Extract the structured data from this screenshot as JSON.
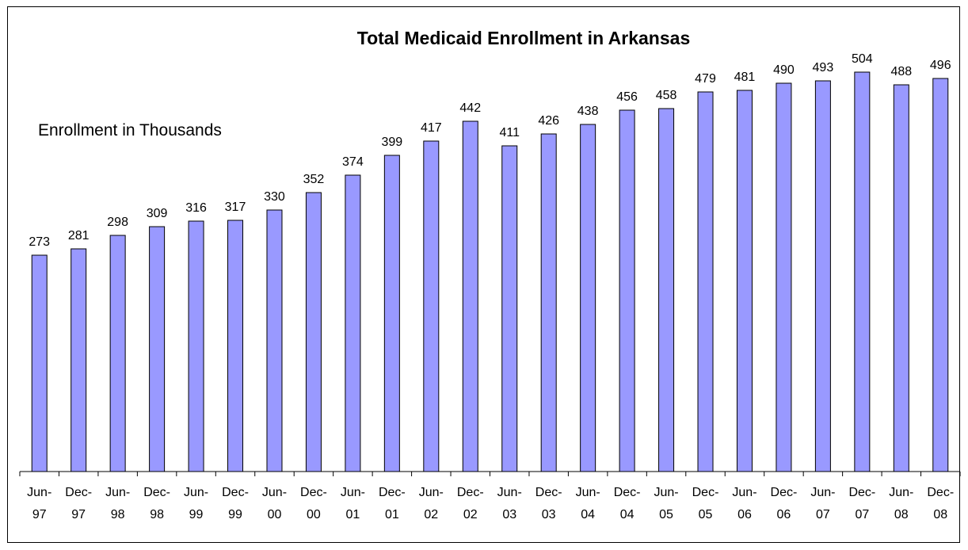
{
  "chart_data": {
    "type": "bar",
    "title": "Total Medicaid Enrollment in Arkansas",
    "annotation": "Enrollment in Thousands",
    "categories": [
      [
        "Jun-",
        "97"
      ],
      [
        "Dec-",
        "97"
      ],
      [
        "Jun-",
        "98"
      ],
      [
        "Dec-",
        "98"
      ],
      [
        "Jun-",
        "99"
      ],
      [
        "Dec-",
        "99"
      ],
      [
        "Jun-",
        "00"
      ],
      [
        "Dec-",
        "00"
      ],
      [
        "Jun-",
        "01"
      ],
      [
        "Dec-",
        "01"
      ],
      [
        "Jun-",
        "02"
      ],
      [
        "Dec-",
        "02"
      ],
      [
        "Jun-",
        "03"
      ],
      [
        "Dec-",
        "03"
      ],
      [
        "Jun-",
        "04"
      ],
      [
        "Dec-",
        "04"
      ],
      [
        "Jun-",
        "05"
      ],
      [
        "Dec-",
        "05"
      ],
      [
        "Jun-",
        "06"
      ],
      [
        "Dec-",
        "06"
      ],
      [
        "Jun-",
        "07"
      ],
      [
        "Dec-",
        "07"
      ],
      [
        "Jun-",
        "08"
      ],
      [
        "Dec-",
        "08"
      ]
    ],
    "values": [
      273,
      281,
      298,
      309,
      316,
      317,
      330,
      352,
      374,
      399,
      417,
      442,
      411,
      426,
      438,
      456,
      458,
      479,
      481,
      490,
      493,
      504,
      488,
      496
    ],
    "ylim": [
      0,
      600
    ],
    "bar_color": "#9999ff",
    "bar_edge_color": "#000000",
    "grid": false,
    "legend": "none",
    "data_labels": true
  }
}
